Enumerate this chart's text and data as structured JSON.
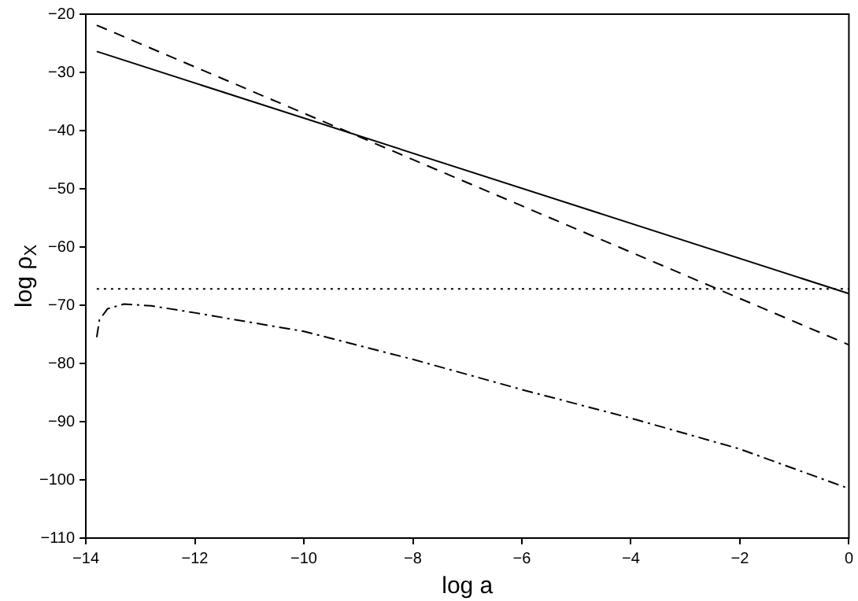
{
  "chart_data": {
    "type": "line",
    "xlabel": "log a",
    "ylabel": "log ρ$_{X}$",
    "xlim": [
      -14,
      0
    ],
    "xticks": [
      -14,
      -12,
      -10,
      -8,
      -6,
      -4,
      -2,
      0
    ],
    "ylim": [
      -110,
      -20
    ],
    "yticks": [
      -110,
      -100,
      -90,
      -80,
      -70,
      -60,
      -50,
      -40,
      -30,
      -20
    ],
    "grid": false,
    "legend": false,
    "series": [
      {
        "color": "#000000",
        "line_style": "solid",
        "x": [
          -13.8,
          0
        ],
        "values": [
          -26.4,
          -68
        ]
      },
      {
        "color": "#000000",
        "line_style": "dashed",
        "x": [
          -13.8,
          0
        ],
        "values": [
          -21.9,
          -76.8
        ]
      },
      {
        "color": "#000000",
        "line_style": "dotted",
        "x": [
          -13.8,
          0
        ],
        "values": [
          -67.2,
          -67.2
        ]
      },
      {
        "color": "#000000",
        "line_style": "dashdot",
        "x": [
          -13.8,
          -13.75,
          -13.6,
          -13.3,
          -12.8,
          -12,
          -10,
          -8,
          -6,
          -4,
          -2,
          0
        ],
        "values": [
          -75.5,
          -72.5,
          -70.6,
          -69.8,
          -70.1,
          -71.3,
          -74.5,
          -79.3,
          -84.5,
          -89.4,
          -94.7,
          -101.5
        ]
      }
    ]
  }
}
